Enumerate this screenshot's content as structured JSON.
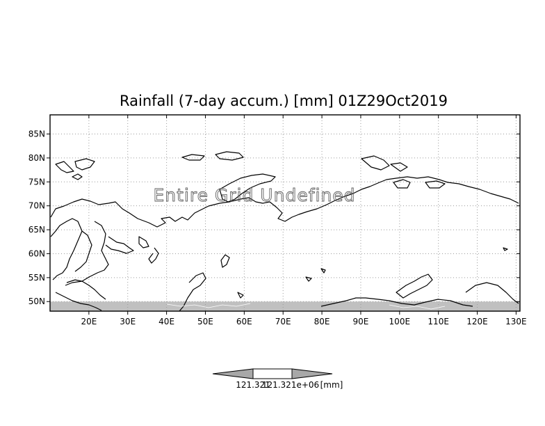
{
  "map": {
    "title": "Rainfall (7-day accum.) [mm] 01Z29Oct2019",
    "status_text": "Entire Grid Undefined",
    "x_ticks": [
      "20E",
      "30E",
      "40E",
      "50E",
      "60E",
      "70E",
      "80E",
      "90E",
      "100E",
      "110E",
      "120E",
      "130E"
    ],
    "y_ticks": [
      "85N",
      "80N",
      "75N",
      "70N",
      "65N",
      "60N",
      "55N",
      "50N"
    ],
    "extent": {
      "lon_min": 10,
      "lon_max": 131,
      "lat_min": 48,
      "lat_max": 89
    },
    "undefined_band": {
      "lat_min": 48,
      "lat_max": 50
    },
    "colors": {
      "undefined_fill": "#c0c0c0",
      "coast": "#000000",
      "grid": "#9a9a9a"
    }
  },
  "colorbar": {
    "label_left": "121.321",
    "label_right": "121.321e+06",
    "unit": "[mm]",
    "colors": {
      "arrow": "#a8a8a8",
      "middle": "#ffffff"
    }
  }
}
